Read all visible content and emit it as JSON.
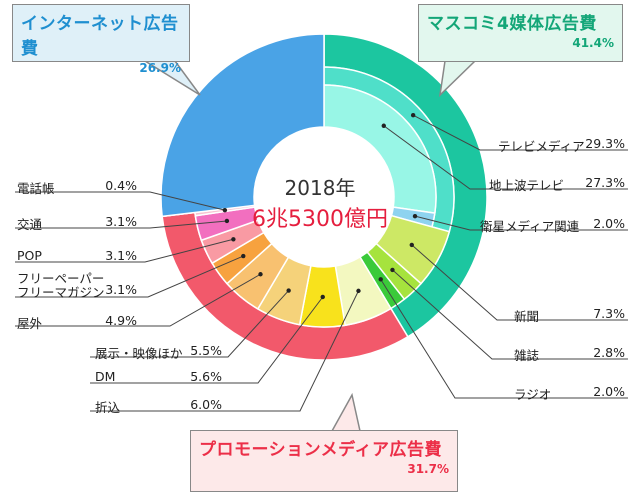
{
  "chart_data": {
    "type": "pie",
    "center_year": "2018年",
    "center_total": "6兆5300億円",
    "groups": [
      {
        "name": "インターネット広告費",
        "value_label": "26.9%",
        "value": 26.9,
        "color": "#4aa3e6"
      },
      {
        "name": "マスコミ4媒体広告費",
        "value_label": "41.4%",
        "value": 41.4,
        "color": "#1cc6a0"
      },
      {
        "name": "プロモーションメディア広告費",
        "value_label": "31.7%",
        "value": 31.7,
        "color": "#f2596b"
      }
    ],
    "mass_sub": [
      {
        "name": "テレビメディア",
        "value": 29.3,
        "value_label": "29.3%",
        "color": "#4fdfc9"
      }
    ],
    "inner": [
      {
        "name": "地上波テレビ",
        "value": 27.3,
        "value_label": "27.3%",
        "color": "#98f6e6"
      },
      {
        "name": "衛星メディア関連",
        "value": 2.0,
        "value_label": "2.0%",
        "color": "#8ed3f0"
      },
      {
        "name": "新聞",
        "value": 7.3,
        "value_label": "7.3%",
        "color": "#cde865"
      },
      {
        "name": "雑誌",
        "value": 2.8,
        "value_label": "2.8%",
        "color": "#a6e33d"
      },
      {
        "name": "ラジオ",
        "value": 2.0,
        "value_label": "2.0%",
        "color": "#3bca3a"
      },
      {
        "name": "折込",
        "value": 6.0,
        "value_label": "6.0%",
        "color": "#f3f8c0"
      },
      {
        "name": "DM",
        "value": 5.6,
        "value_label": "5.6%",
        "color": "#f8e21c"
      },
      {
        "name": "展示・映像ほか",
        "value": 5.5,
        "value_label": "5.5%",
        "color": "#f5d27a"
      },
      {
        "name": "屋外",
        "value": 4.9,
        "value_label": "4.9%",
        "color": "#f8c170"
      },
      {
        "name": "フリーペーパー フリーマガジン",
        "value": 3.1,
        "value_label": "3.1%",
        "color": "#f7a23f"
      },
      {
        "name": "POP",
        "value": 3.1,
        "value_label": "3.1%",
        "color": "#f99aa3"
      },
      {
        "name": "交通",
        "value": 3.1,
        "value_label": "3.1%",
        "color": "#f26fbf"
      },
      {
        "name": "電話帳",
        "value": 0.4,
        "value_label": "0.4%",
        "color": "#f7c3d2"
      }
    ]
  },
  "labels": {
    "tv_media": {
      "name": "テレビメディア",
      "value": "29.3%"
    },
    "terrestrial": {
      "name": "地上波テレビ",
      "value": "27.3%"
    },
    "satellite": {
      "name": "衛星メディア関連",
      "value": "2.0%"
    },
    "newspaper": {
      "name": "新聞",
      "value": "7.3%"
    },
    "magazine": {
      "name": "雑誌",
      "value": "2.8%"
    },
    "radio": {
      "name": "ラジオ",
      "value": "2.0%"
    },
    "insert": {
      "name": "折込",
      "value": "6.0%"
    },
    "dm": {
      "name": "DM",
      "value": "5.6%"
    },
    "exhibition": {
      "name": "展示・映像ほか",
      "value": "5.5%"
    },
    "outdoor": {
      "name": "屋外",
      "value": "4.9%"
    },
    "freepaper_1": "フリーペーパー",
    "freepaper_2": "フリーマガジン",
    "freepaper_value": "3.1%",
    "pop": {
      "name": "POP",
      "value": "3.1%"
    },
    "transit": {
      "name": "交通",
      "value": "3.1%"
    },
    "phonebook": {
      "name": "電話帳",
      "value": "0.4%"
    }
  }
}
